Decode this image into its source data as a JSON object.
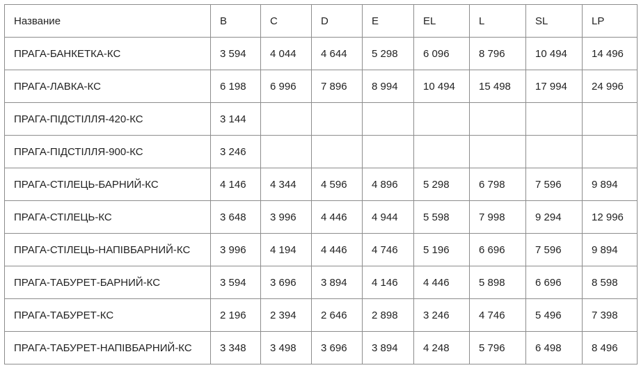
{
  "table": {
    "header": [
      "Название",
      "B",
      "C",
      "D",
      "E",
      "EL",
      "L",
      "SL",
      "LP"
    ],
    "rows": [
      [
        "ПРАГА-БАНКЕТКА-КС",
        "3 594",
        "4 044",
        "4 644",
        "5 298",
        "6 096",
        "8 796",
        "10 494",
        "14 496"
      ],
      [
        "ПРАГА-ЛАВКА-КС",
        "6 198",
        "6 996",
        "7 896",
        "8 994",
        "10 494",
        "15 498",
        "17 994",
        "24 996"
      ],
      [
        "ПРАГА-ПІДСТІЛЛЯ-420-КС",
        "3 144"
      ],
      [
        "ПРАГА-ПІДСТІЛЛЯ-900-КС",
        "3 246"
      ],
      [
        "ПРАГА-СТІЛЕЦЬ-БАРНИЙ-КС",
        "4 146",
        "4 344",
        "4 596",
        "4 896",
        "5 298",
        "6 798",
        "7 596",
        "9 894"
      ],
      [
        "ПРАГА-СТІЛЕЦЬ-КС",
        "3 648",
        "3 996",
        "4 446",
        "4 944",
        "5 598",
        "7 998",
        "9 294",
        "12 996"
      ],
      [
        "ПРАГА-СТІЛЕЦЬ-НАПІВБАРНИЙ-КС",
        "3 996",
        "4 194",
        "4 446",
        "4 746",
        "5 196",
        "6 696",
        "7 596",
        "9 894"
      ],
      [
        "ПРАГА-ТАБУРЕТ-БАРНИЙ-КС",
        "3 594",
        "3 696",
        "3 894",
        "4 146",
        "4 446",
        "5 898",
        "6 696",
        "8 598"
      ],
      [
        "ПРАГА-ТАБУРЕТ-КС",
        "2 196",
        "2 394",
        "2 646",
        "2 898",
        "3 246",
        "4 746",
        "5 496",
        "7 398"
      ],
      [
        "ПРАГА-ТАБУРЕТ-НАПІВБАРНИЙ-КС",
        "3 348",
        "3 498",
        "3 696",
        "3 894",
        "4 248",
        "5 796",
        "6 498",
        "8 496"
      ]
    ]
  }
}
